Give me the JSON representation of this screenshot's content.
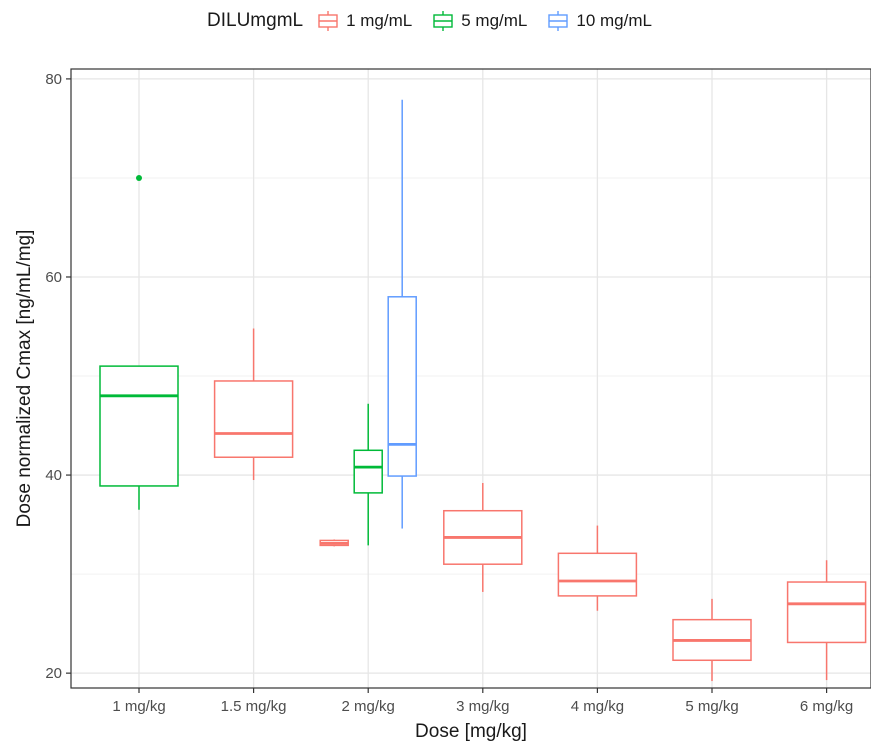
{
  "chart_data": {
    "type": "box",
    "xlabel": "Dose [mg/kg]",
    "ylabel": "Dose normalized Cmax [ng/mL/mg]",
    "categories": [
      "1 mg/kg",
      "1.5 mg/kg",
      "2 mg/kg",
      "3 mg/kg",
      "4 mg/kg",
      "5 mg/kg",
      "6 mg/kg"
    ],
    "yticks": [
      20,
      40,
      60,
      80
    ],
    "ylim": [
      18.5,
      81
    ],
    "grid": true,
    "legend": {
      "title": "DILUmgmL",
      "position": "top",
      "entries": [
        {
          "label": "1 mg/mL",
          "color": "#F8766D"
        },
        {
          "label": "5 mg/mL",
          "color": "#00BA38"
        },
        {
          "label": "10 mg/mL",
          "color": "#619CFF"
        }
      ]
    },
    "series": [
      {
        "group": "1 mg/mL",
        "color": "#F8766D",
        "boxes": [
          {
            "category": "1.5 mg/kg",
            "position": "center",
            "min": 39.5,
            "q1": 41.8,
            "median": 44.2,
            "q3": 49.5,
            "max": 54.8,
            "outliers": []
          },
          {
            "category": "2 mg/kg",
            "position": "left",
            "min": 32.8,
            "q1": 32.9,
            "median": 33.1,
            "q3": 33.4,
            "max": 33.5,
            "outliers": []
          },
          {
            "category": "3 mg/kg",
            "position": "center",
            "min": 28.2,
            "q1": 31.0,
            "median": 33.7,
            "q3": 36.4,
            "max": 39.2,
            "outliers": []
          },
          {
            "category": "4 mg/kg",
            "position": "center",
            "min": 26.3,
            "q1": 27.8,
            "median": 29.3,
            "q3": 32.1,
            "max": 34.9,
            "outliers": []
          },
          {
            "category": "5 mg/kg",
            "position": "center",
            "min": 19.2,
            "q1": 21.3,
            "median": 23.3,
            "q3": 25.4,
            "max": 27.5,
            "outliers": []
          },
          {
            "category": "6 mg/kg",
            "position": "center",
            "min": 19.3,
            "q1": 23.1,
            "median": 27.0,
            "q3": 29.2,
            "max": 31.4,
            "outliers": []
          }
        ]
      },
      {
        "group": "5 mg/mL",
        "color": "#00BA38",
        "boxes": [
          {
            "category": "1 mg/kg",
            "position": "center",
            "min": 36.5,
            "q1": 38.9,
            "median": 48.0,
            "q3": 51.0,
            "max": 51.0,
            "outliers": [
              70.0
            ]
          },
          {
            "category": "2 mg/kg",
            "position": "middle",
            "min": 32.9,
            "q1": 38.2,
            "median": 40.8,
            "q3": 42.5,
            "max": 47.2,
            "outliers": []
          }
        ]
      },
      {
        "group": "10 mg/mL",
        "color": "#619CFF",
        "boxes": [
          {
            "category": "2 mg/kg",
            "position": "right",
            "min": 34.6,
            "q1": 39.9,
            "median": 43.1,
            "q3": 58.0,
            "max": 77.9,
            "outliers": []
          }
        ]
      }
    ]
  }
}
